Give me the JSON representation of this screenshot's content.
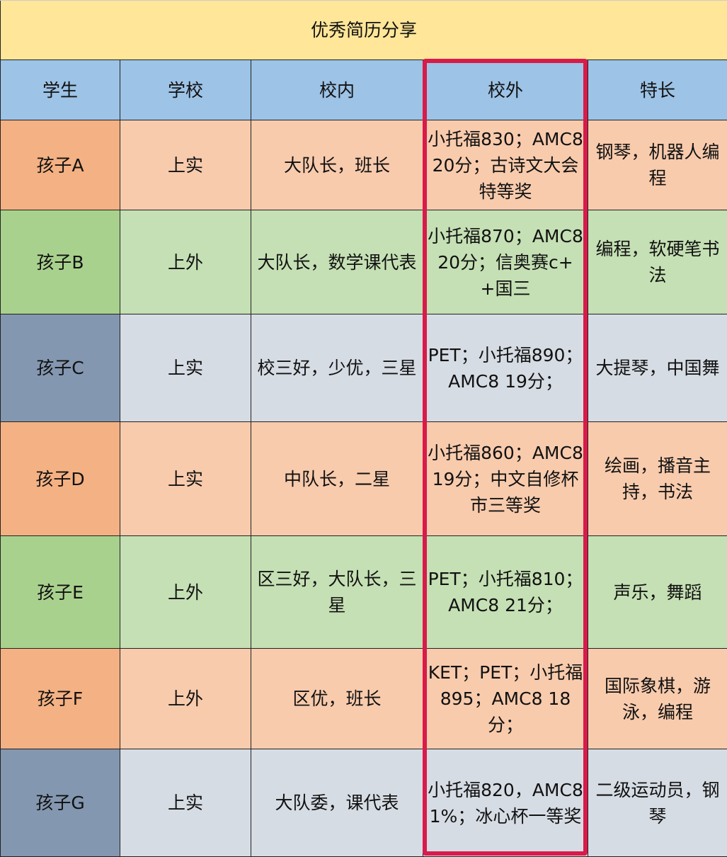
{
  "title": "优秀简历分享",
  "headers": [
    "学生",
    "学校",
    "校内",
    "校外",
    "特长"
  ],
  "highlight_color": "#D81B4A",
  "rows": [
    {
      "theme": "orange",
      "cells": [
        "孩子A",
        "上实",
        "大队长，班长",
        "小托福830；AMC8 20分；古诗文大会特等奖",
        "钢琴，机器人编程"
      ]
    },
    {
      "theme": "green",
      "cells": [
        "孩子B",
        "上外",
        "大队长，数学课代表",
        "小托福870；AMC8 20分；信奥赛c++国三",
        "编程，软硬笔书法"
      ]
    },
    {
      "theme": "slate",
      "cells": [
        "孩子C",
        "上实",
        "校三好，少优，三星",
        "PET；小托福890；AMC8 19分；",
        "大提琴，中国舞"
      ]
    },
    {
      "theme": "orange",
      "cells": [
        "孩子D",
        "上实",
        "中队长，二星",
        "小托福860；AMC8 19分；中文自修杯市三等奖",
        "绘画，播音主持，书法"
      ]
    },
    {
      "theme": "green",
      "cells": [
        "孩子E",
        "上外",
        "区三好，大队长，三星",
        "PET；小托福810；AMC8 21分；",
        "声乐，舞蹈"
      ]
    },
    {
      "theme": "orange",
      "cells": [
        "孩子F",
        "上外",
        "区优，班长",
        "KET；PET；小托福895；AMC8 18分；",
        "国际象棋，游泳，编程"
      ]
    },
    {
      "theme": "slate",
      "cells": [
        "孩子G",
        "上实",
        "大队委，课代表",
        "小托福820，AMC8 1%；冰心杯一等奖",
        "二级运动员，钢琴"
      ]
    }
  ]
}
